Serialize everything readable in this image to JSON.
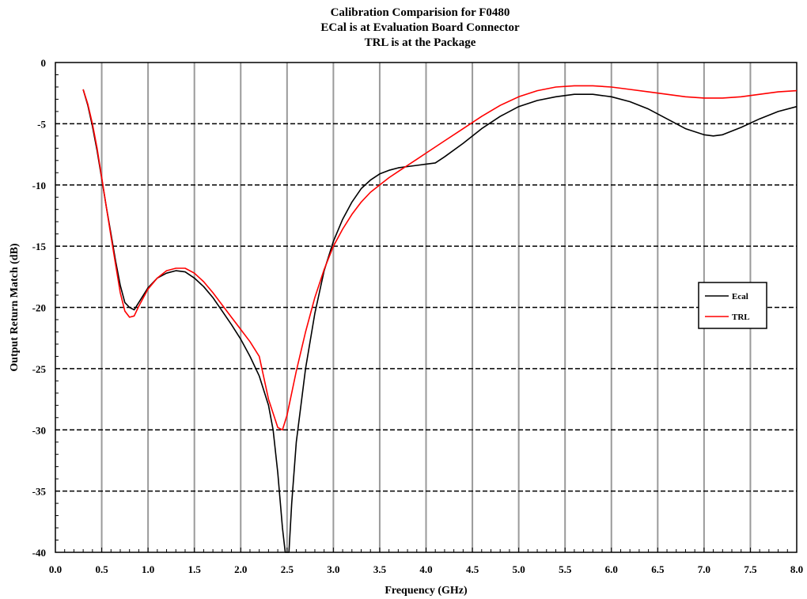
{
  "chart_data": {
    "type": "line",
    "title": [
      "Calibration Comparision for F0480",
      "ECal is at Evaluation Board Connector",
      "TRL is at the Package"
    ],
    "xlabel": "Frequency (GHz)",
    "ylabel": "Output Return Match (dB)",
    "xlim": [
      0.0,
      8.0
    ],
    "ylim": [
      -40,
      0
    ],
    "x_ticks": [
      0.0,
      0.5,
      1.0,
      1.5,
      2.0,
      2.5,
      3.0,
      3.5,
      4.0,
      4.5,
      5.0,
      5.5,
      6.0,
      6.5,
      7.0,
      7.5,
      8.0
    ],
    "x_tick_labels": [
      "0.0",
      "0.5",
      "1.0",
      "1.5",
      "2.0",
      "2.5",
      "3.0",
      "3.5",
      "4.0",
      "4.5",
      "5.0",
      "5.5",
      "6.0",
      "6.5",
      "7.0",
      "7.5",
      "8.0"
    ],
    "y_ticks": [
      0,
      -5,
      -10,
      -15,
      -20,
      -25,
      -30,
      -35,
      -40
    ],
    "y_tick_labels": [
      "0",
      "-5",
      "-10",
      "-15",
      "-20",
      "-25",
      "-30",
      "-35",
      "-40"
    ],
    "grid": {
      "vertical": "solid",
      "horizontal": "dashed"
    },
    "legend_position": "right",
    "series": [
      {
        "name": "Ecal",
        "color": "#000000",
        "points": [
          [
            0.3,
            -2.2
          ],
          [
            0.35,
            -3.5
          ],
          [
            0.4,
            -5.2
          ],
          [
            0.45,
            -7.2
          ],
          [
            0.5,
            -9.5
          ],
          [
            0.55,
            -11.8
          ],
          [
            0.6,
            -14.0
          ],
          [
            0.65,
            -16.2
          ],
          [
            0.7,
            -18.2
          ],
          [
            0.75,
            -19.6
          ],
          [
            0.8,
            -20.0
          ],
          [
            0.85,
            -20.2
          ],
          [
            0.9,
            -19.6
          ],
          [
            1.0,
            -18.4
          ],
          [
            1.1,
            -17.6
          ],
          [
            1.2,
            -17.2
          ],
          [
            1.3,
            -17.0
          ],
          [
            1.4,
            -17.1
          ],
          [
            1.5,
            -17.6
          ],
          [
            1.6,
            -18.3
          ],
          [
            1.7,
            -19.2
          ],
          [
            1.8,
            -20.3
          ],
          [
            1.9,
            -21.4
          ],
          [
            2.0,
            -22.6
          ],
          [
            2.1,
            -24.0
          ],
          [
            2.2,
            -25.6
          ],
          [
            2.3,
            -28.0
          ],
          [
            2.35,
            -30.0
          ],
          [
            2.4,
            -33.5
          ],
          [
            2.45,
            -38.0
          ],
          [
            2.48,
            -40.0
          ],
          [
            2.52,
            -40.0
          ],
          [
            2.55,
            -36.0
          ],
          [
            2.6,
            -31.0
          ],
          [
            2.7,
            -25.0
          ],
          [
            2.8,
            -20.5
          ],
          [
            2.9,
            -17.0
          ],
          [
            3.0,
            -14.6
          ],
          [
            3.1,
            -12.8
          ],
          [
            3.2,
            -11.4
          ],
          [
            3.3,
            -10.3
          ],
          [
            3.4,
            -9.6
          ],
          [
            3.5,
            -9.1
          ],
          [
            3.6,
            -8.8
          ],
          [
            3.7,
            -8.6
          ],
          [
            3.8,
            -8.5
          ],
          [
            3.9,
            -8.4
          ],
          [
            4.0,
            -8.3
          ],
          [
            4.1,
            -8.2
          ],
          [
            4.2,
            -7.7
          ],
          [
            4.4,
            -6.6
          ],
          [
            4.6,
            -5.4
          ],
          [
            4.8,
            -4.4
          ],
          [
            5.0,
            -3.6
          ],
          [
            5.2,
            -3.1
          ],
          [
            5.4,
            -2.8
          ],
          [
            5.6,
            -2.6
          ],
          [
            5.8,
            -2.6
          ],
          [
            6.0,
            -2.8
          ],
          [
            6.2,
            -3.2
          ],
          [
            6.4,
            -3.8
          ],
          [
            6.6,
            -4.6
          ],
          [
            6.8,
            -5.4
          ],
          [
            7.0,
            -5.9
          ],
          [
            7.1,
            -6.0
          ],
          [
            7.2,
            -5.9
          ],
          [
            7.4,
            -5.3
          ],
          [
            7.6,
            -4.6
          ],
          [
            7.8,
            -4.0
          ],
          [
            8.0,
            -3.6
          ]
        ]
      },
      {
        "name": "TRL",
        "color": "#ff0000",
        "points": [
          [
            0.3,
            -2.2
          ],
          [
            0.35,
            -3.4
          ],
          [
            0.4,
            -5.0
          ],
          [
            0.45,
            -7.0
          ],
          [
            0.5,
            -9.4
          ],
          [
            0.55,
            -11.8
          ],
          [
            0.6,
            -14.2
          ],
          [
            0.65,
            -16.5
          ],
          [
            0.7,
            -18.8
          ],
          [
            0.75,
            -20.3
          ],
          [
            0.8,
            -20.8
          ],
          [
            0.85,
            -20.7
          ],
          [
            0.9,
            -19.9
          ],
          [
            1.0,
            -18.5
          ],
          [
            1.1,
            -17.6
          ],
          [
            1.2,
            -17.0
          ],
          [
            1.3,
            -16.8
          ],
          [
            1.4,
            -16.8
          ],
          [
            1.5,
            -17.2
          ],
          [
            1.6,
            -17.9
          ],
          [
            1.7,
            -18.8
          ],
          [
            1.8,
            -19.8
          ],
          [
            1.9,
            -20.8
          ],
          [
            2.0,
            -21.8
          ],
          [
            2.1,
            -22.8
          ],
          [
            2.2,
            -24.0
          ],
          [
            2.3,
            -27.5
          ],
          [
            2.4,
            -29.8
          ],
          [
            2.45,
            -30.0
          ],
          [
            2.5,
            -28.8
          ],
          [
            2.6,
            -25.2
          ],
          [
            2.7,
            -22.0
          ],
          [
            2.8,
            -19.2
          ],
          [
            2.9,
            -16.9
          ],
          [
            3.0,
            -15.0
          ],
          [
            3.1,
            -13.6
          ],
          [
            3.2,
            -12.4
          ],
          [
            3.3,
            -11.4
          ],
          [
            3.4,
            -10.6
          ],
          [
            3.5,
            -10.0
          ],
          [
            3.6,
            -9.4
          ],
          [
            3.7,
            -8.9
          ],
          [
            3.8,
            -8.4
          ],
          [
            3.9,
            -7.9
          ],
          [
            4.0,
            -7.4
          ],
          [
            4.2,
            -6.4
          ],
          [
            4.4,
            -5.4
          ],
          [
            4.6,
            -4.4
          ],
          [
            4.8,
            -3.5
          ],
          [
            5.0,
            -2.8
          ],
          [
            5.2,
            -2.3
          ],
          [
            5.4,
            -2.0
          ],
          [
            5.6,
            -1.9
          ],
          [
            5.8,
            -1.9
          ],
          [
            6.0,
            -2.0
          ],
          [
            6.2,
            -2.2
          ],
          [
            6.4,
            -2.4
          ],
          [
            6.6,
            -2.6
          ],
          [
            6.8,
            -2.8
          ],
          [
            7.0,
            -2.9
          ],
          [
            7.2,
            -2.9
          ],
          [
            7.4,
            -2.8
          ],
          [
            7.6,
            -2.6
          ],
          [
            7.8,
            -2.4
          ],
          [
            8.0,
            -2.3
          ]
        ]
      }
    ]
  }
}
